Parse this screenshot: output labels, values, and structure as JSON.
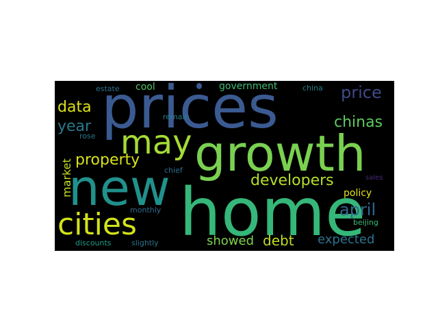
{
  "words": {
    "prices": {
      "text": "prices",
      "color": "#3b5a91"
    },
    "home": {
      "text": "home",
      "color": "#35b779"
    },
    "growth": {
      "text": "growth",
      "color": "#7ad151"
    },
    "new": {
      "text": "new",
      "color": "#21918c"
    },
    "cities": {
      "text": "cities",
      "color": "#d2e21b"
    },
    "may": {
      "text": "may",
      "color": "#a5db36"
    },
    "property": {
      "text": "property",
      "color": "#d8e219"
    },
    "developers": {
      "text": "developers",
      "color": "#b5de2b"
    },
    "price": {
      "text": "price",
      "color": "#3e4a89"
    },
    "data": {
      "text": "data",
      "color": "#dde318"
    },
    "year": {
      "text": "year",
      "color": "#2a788e"
    },
    "chinas": {
      "text": "chinas",
      "color": "#5ec962"
    },
    "april": {
      "text": "april",
      "color": "#31688e"
    },
    "debt": {
      "text": "debt",
      "color": "#c2df23"
    },
    "showed": {
      "text": "showed",
      "color": "#7fd34e"
    },
    "expected": {
      "text": "expected",
      "color": "#2c728e"
    },
    "market": {
      "text": "market",
      "color": "#c8e020"
    },
    "policy": {
      "text": "policy",
      "color": "#e2e418"
    },
    "government": {
      "text": "government",
      "color": "#3fbc73"
    },
    "cool": {
      "text": "cool",
      "color": "#52c569"
    },
    "estate": {
      "text": "estate",
      "color": "#2e6f8e"
    },
    "china": {
      "text": "china",
      "color": "#277f8e"
    },
    "remain": {
      "text": "remain",
      "color": "#287c8e"
    },
    "rose": {
      "text": "rose",
      "color": "#2c738e"
    },
    "chief": {
      "text": "chief",
      "color": "#2d708e"
    },
    "sales": {
      "text": "sales",
      "color": "#482878"
    },
    "monthly": {
      "text": "monthly",
      "color": "#2f6c8e"
    },
    "beijing": {
      "text": "beijing",
      "color": "#3dbc74"
    },
    "discounts": {
      "text": "discounts",
      "color": "#1f9e89"
    },
    "slightly": {
      "text": "slightly",
      "color": "#2c738e"
    }
  }
}
